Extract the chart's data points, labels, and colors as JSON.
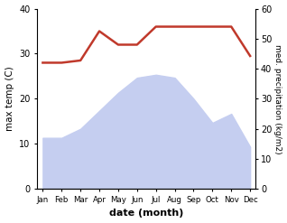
{
  "months": [
    "Jan",
    "Feb",
    "Mar",
    "Apr",
    "May",
    "Jun",
    "Jul",
    "Aug",
    "Sep",
    "Oct",
    "Nov",
    "Dec"
  ],
  "temp": [
    28,
    28,
    28.5,
    35,
    32,
    32,
    36,
    36,
    36,
    36,
    36,
    29.5
  ],
  "precip": [
    17,
    17,
    20,
    26,
    32,
    37,
    38,
    37,
    30,
    22,
    25,
    14
  ],
  "temp_ylim": [
    0,
    40
  ],
  "precip_ylim": [
    0,
    60
  ],
  "temp_color": "#c0392b",
  "fill_color": "#c5cef0",
  "ylabel_left": "max temp (C)",
  "ylabel_right": "med. precipitation (kg/m2)",
  "xlabel": "date (month)",
  "temp_yticks": [
    0,
    10,
    20,
    30,
    40
  ],
  "precip_yticks": [
    0,
    10,
    20,
    30,
    40,
    50,
    60
  ],
  "bg_color": "#ffffff"
}
